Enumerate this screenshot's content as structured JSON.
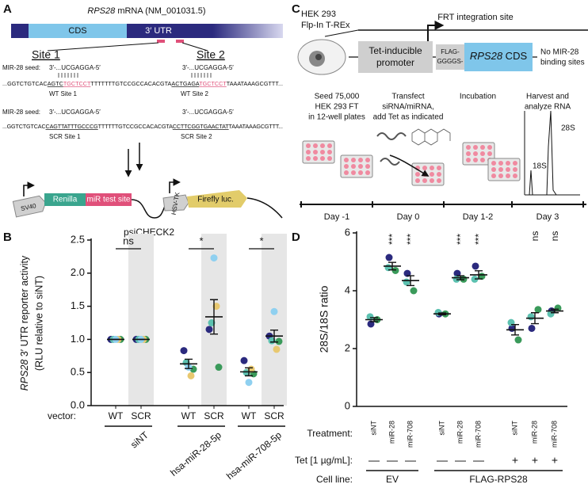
{
  "figure": {
    "letters": [
      "A",
      "B",
      "C",
      "D"
    ],
    "a": {
      "title_italic": "RPS28",
      "title": " mRNA (NM_001031.5)",
      "cds": "CDS",
      "utr": "3′ UTR",
      "site1": "Site 1",
      "site2": "Site 2",
      "seed_label": "MIR-28 seed:",
      "seed": "3′-...UCGAGGA-5′",
      "wt_seq": [
        "...GGTCTGTCAC",
        "AGTC",
        "TGCTCCT",
        "TTTTTTTGTCCGCCACACGTA",
        "ACTGAGA",
        "TGCTCCT",
        "TAAATAAAGCGTTT..."
      ],
      "scr_seq": [
        "...GGTCTGTCAC",
        "CAGTTATTTGCCCG",
        "TTTTTTGTCCGCCACACGTA",
        "CCTTCGGTGAACTAT",
        "TAAATAAAGCGTTT..."
      ],
      "wt_site1": "WT Site 1",
      "wt_site2": "WT Site 2",
      "scr_site1": "SCR Site 1",
      "scr_site2": "SCR Site 2",
      "sv40": "SV40",
      "renilla": "Renilla",
      "test_site": "miR test site",
      "hsvtk": "HSV-TK",
      "firefly": "Firefly luc.",
      "plasmid": "psiCHECK2"
    },
    "c": {
      "cell": [
        "HEK 293",
        "Flp-In T-REx"
      ],
      "frt": "FRT integration site",
      "promoter": [
        "Tet-inducible",
        "promoter"
      ],
      "flag": [
        "FLAG-",
        "GGGGS-"
      ],
      "cds_italic": "RPS28",
      "cds": " CDS",
      "no_sites": [
        "No MIR-28",
        "binding sites"
      ],
      "steps": [
        [
          "Seed 75,000",
          "HEK 293 FT",
          "in 12-well plates"
        ],
        [
          "Transfect",
          "siRNA/miRNA,",
          "add Tet as indicated"
        ],
        [
          "Incubation"
        ],
        [
          "Harvest and",
          "analyze RNA"
        ]
      ],
      "bands": [
        "28S",
        "18S"
      ],
      "days": [
        "Day -1",
        "Day 0",
        "Day 1-2",
        "Day 3"
      ]
    }
  },
  "chart_data": [
    {
      "type": "scatter",
      "ylabel_italic": "RPS28",
      "ylabel": " 3′ UTR reporter activity",
      "ylabel2": "(RLU relative to siNT)",
      "axis_name": "vector:",
      "categories": [
        "WT",
        "SCR",
        "WT",
        "SCR",
        "WT",
        "SCR"
      ],
      "groups": [
        "siNT",
        "hsa-miR-28-5p",
        "hsa-miR-708-5p"
      ],
      "series": [
        {
          "color": "#2b2a7e",
          "values": [
            1,
            1,
            0.83,
            1.15,
            0.68,
            1.05
          ]
        },
        {
          "color": "#3a9a5a",
          "values": [
            1,
            1,
            0.55,
            0.58,
            0.48,
            0.97
          ]
        },
        {
          "color": "#5cc1b0",
          "values": [
            1,
            1,
            0.65,
            1.25,
            0.5,
            0.98
          ]
        },
        {
          "color": "#e8c870",
          "values": [
            1,
            1,
            0.45,
            1.5,
            0.55,
            0.85
          ]
        },
        {
          "color": "#8fd0f0",
          "values": [
            1,
            1,
            0.58,
            2.23,
            0.35,
            1.42
          ]
        }
      ],
      "means": [
        1,
        1,
        0.63,
        1.34,
        0.51,
        1.05
      ],
      "errors": [
        0,
        0,
        0.07,
        0.26,
        0.06,
        0.09
      ],
      "significance": [
        "ns",
        "*",
        "*"
      ],
      "ylim": [
        0,
        2.5
      ],
      "yticks": [
        {
          "value": 0,
          "label": "0.0"
        },
        0.5,
        {
          "value": 1,
          "label": "1.0"
        },
        1.5,
        {
          "value": 2,
          "label": "2.0"
        },
        2.5
      ],
      "shade_color": "#e6e6e6"
    },
    {
      "type": "scatter",
      "ylabel": "28S/18S ratio",
      "categories": [
        "siNT",
        "miR-28",
        "miR-708",
        "siNT",
        "miR-28",
        "miR-708",
        "siNT",
        "miR-28",
        "miR-708"
      ],
      "series": [
        {
          "color": "#2b2a7e",
          "values": [
            2.85,
            5.15,
            4.6,
            3.2,
            4.6,
            4.85,
            2.7,
            2.7,
            3.3
          ]
        },
        {
          "color": "#3a9a5a",
          "values": [
            3.0,
            4.7,
            4.0,
            3.2,
            4.4,
            4.5,
            2.3,
            3.35,
            3.4
          ]
        },
        {
          "color": "#5cc1b0",
          "values": [
            3.1,
            4.8,
            4.3,
            3.25,
            4.4,
            4.4,
            2.9,
            3.1,
            3.2
          ]
        }
      ],
      "means": [
        3.0,
        4.85,
        4.35,
        3.2,
        4.45,
        4.55,
        2.65,
        3.05,
        3.3
      ],
      "errors": [
        0.07,
        0.13,
        0.17,
        0.03,
        0.07,
        0.14,
        0.18,
        0.19,
        0.06
      ],
      "significance": [
        null,
        "***",
        "***",
        null,
        "***",
        "***",
        null,
        "ns",
        "ns"
      ],
      "treatment_label": "Treatment:",
      "tet_label": "Tet [1 µg/mL]:",
      "tet": [
        "—",
        "—",
        "—",
        "—",
        "—",
        "—",
        "+",
        "+",
        "+"
      ],
      "cell_label": "Cell line:",
      "cell_lines": [
        "EV",
        "FLAG-RPS28"
      ],
      "ylim": [
        0,
        6
      ],
      "yticks": [
        0,
        2,
        4,
        6
      ]
    }
  ]
}
